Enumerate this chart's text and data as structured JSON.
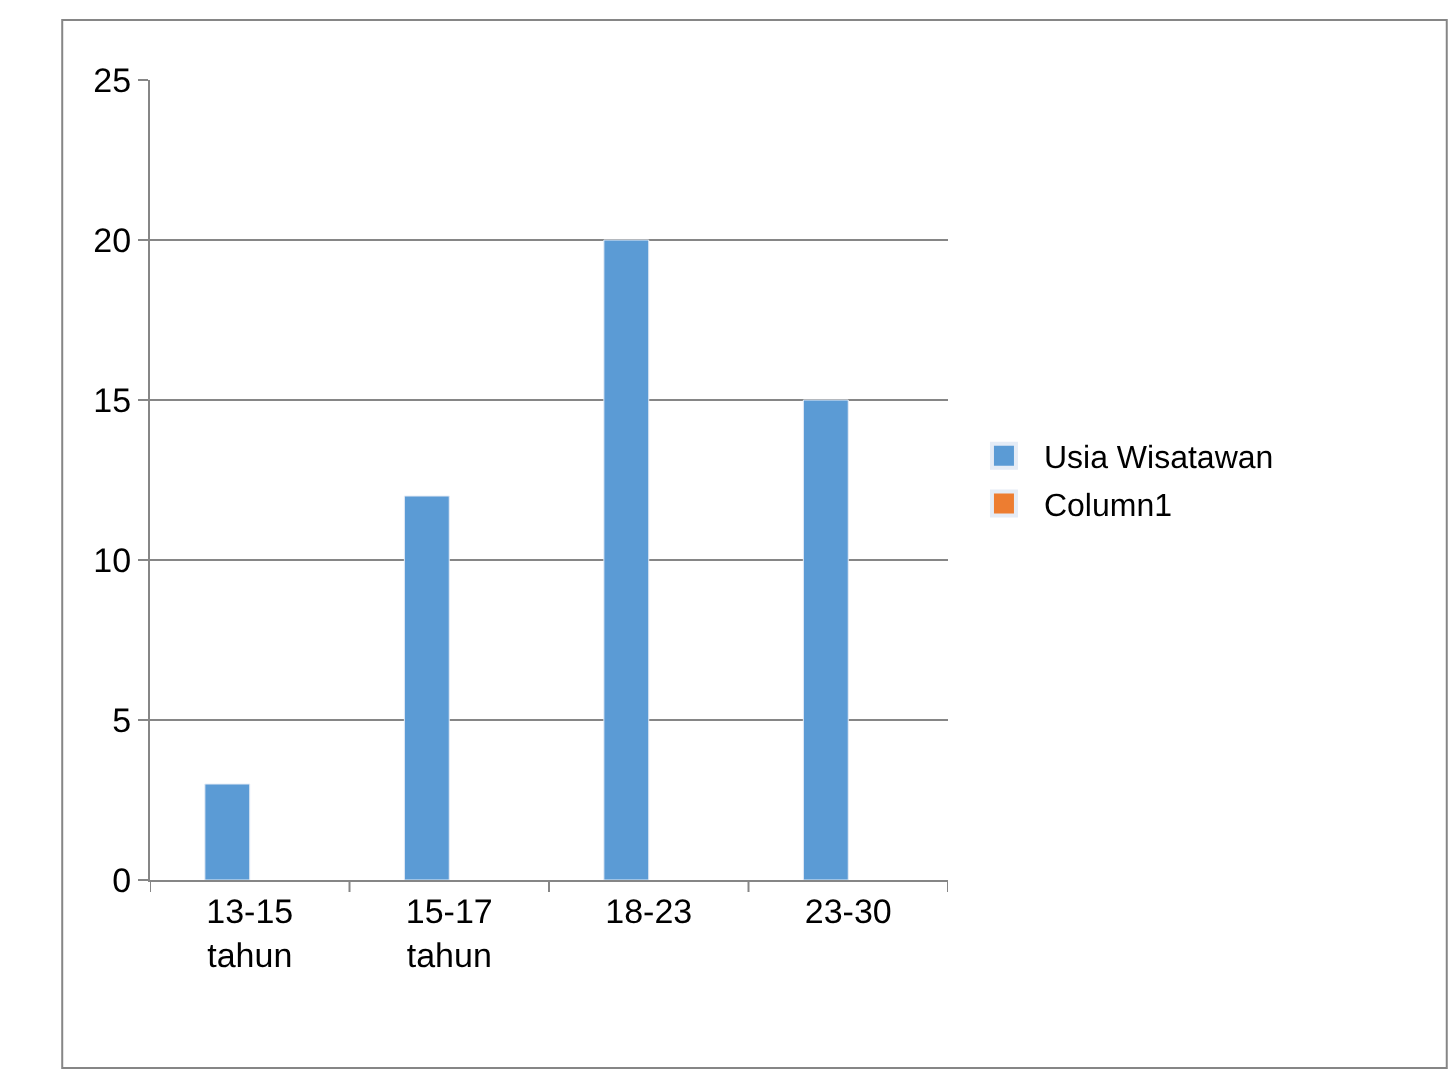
{
  "chart_data": {
    "type": "bar",
    "categories": [
      "13-15 tahun",
      "15-17 tahun",
      "18-23",
      "23-30"
    ],
    "series": [
      {
        "name": "Usia Wisatawan",
        "color": "#5b9bd5",
        "values": [
          3,
          12,
          20,
          15
        ]
      },
      {
        "name": "Column1",
        "color": "#ed7d31",
        "values": [
          null,
          null,
          null,
          null
        ]
      }
    ],
    "ylim": [
      0,
      25
    ],
    "yticks": [
      0,
      5,
      10,
      15,
      20,
      25
    ],
    "grid": "y",
    "legend": "right"
  }
}
